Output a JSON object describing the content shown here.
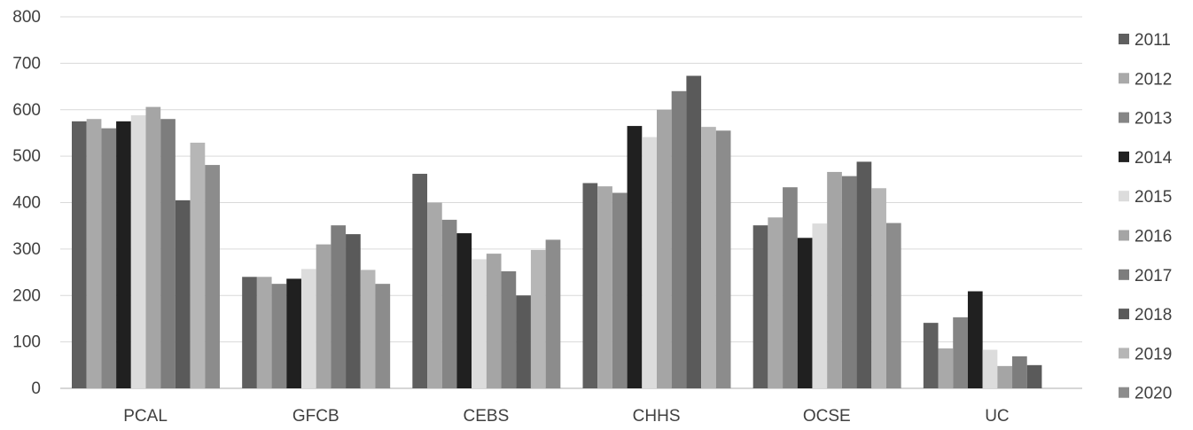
{
  "chart_data": {
    "type": "bar",
    "categories": [
      "PCAL",
      "GFCB",
      "CEBS",
      "CHHS",
      "OCSE",
      "UC"
    ],
    "ylim": [
      0,
      800
    ],
    "yticks": [
      0,
      100,
      200,
      300,
      400,
      500,
      600,
      700,
      800
    ],
    "grid": true,
    "legend_position": "right",
    "series": [
      {
        "name": "2011",
        "color": "#5f5f5f",
        "values": [
          575,
          240,
          462,
          442,
          351,
          141
        ]
      },
      {
        "name": "2012",
        "color": "#a9a9a9",
        "values": [
          580,
          240,
          400,
          435,
          368,
          86
        ]
      },
      {
        "name": "2013",
        "color": "#858585",
        "values": [
          560,
          225,
          363,
          421,
          433,
          153
        ]
      },
      {
        "name": "2014",
        "color": "#202020",
        "values": [
          575,
          236,
          334,
          565,
          324,
          209
        ]
      },
      {
        "name": "2015",
        "color": "#dcdcdc",
        "values": [
          588,
          257,
          278,
          541,
          355,
          83
        ]
      },
      {
        "name": "2016",
        "color": "#a5a5a5",
        "values": [
          606,
          310,
          290,
          600,
          466,
          48
        ]
      },
      {
        "name": "2017",
        "color": "#7d7d7d",
        "values": [
          580,
          351,
          252,
          640,
          457,
          69
        ]
      },
      {
        "name": "2018",
        "color": "#5a5a5a",
        "values": [
          405,
          332,
          200,
          673,
          488,
          50
        ]
      },
      {
        "name": "2019",
        "color": "#b6b6b6",
        "values": [
          529,
          255,
          298,
          563,
          431,
          null
        ]
      },
      {
        "name": "2020",
        "color": "#8c8c8c",
        "values": [
          481,
          225,
          320,
          555,
          356,
          null
        ]
      }
    ]
  }
}
